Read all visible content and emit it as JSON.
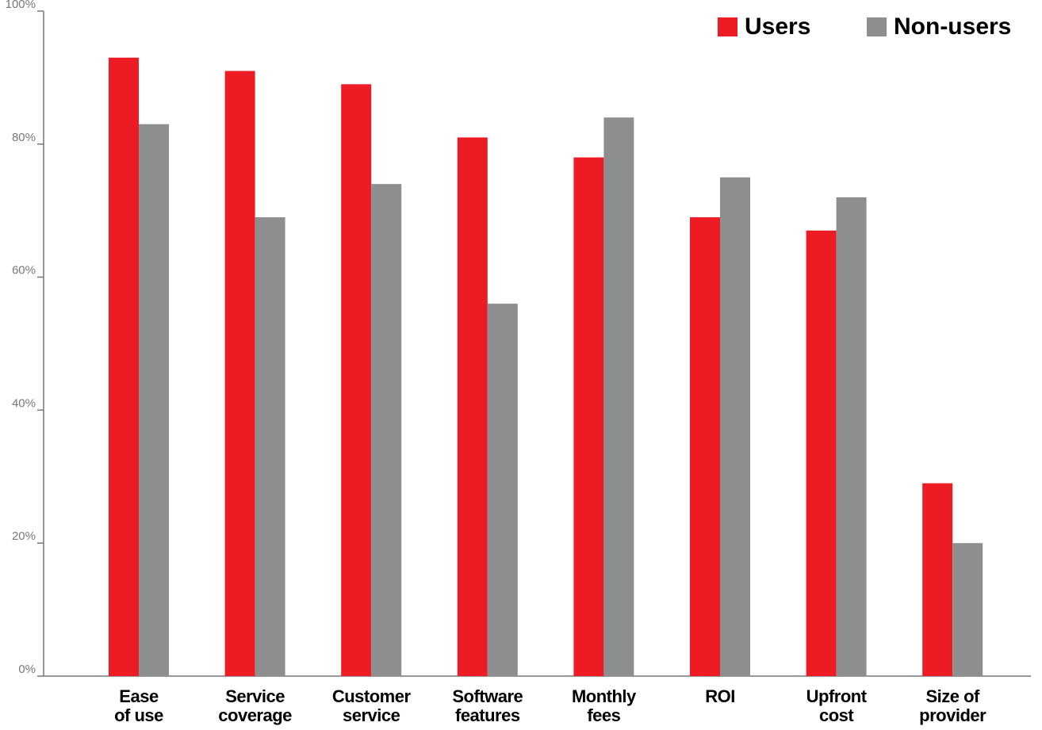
{
  "chart_data": {
    "type": "bar",
    "categories": [
      "Ease\nof use",
      "Service\ncoverage",
      "Customer\nservice",
      "Software\nfeatures",
      "Monthly\nfees",
      "ROI",
      "Upfront\ncost",
      "Size of\nprovider"
    ],
    "series": [
      {
        "name": "Users",
        "color": "#ed1c24",
        "values": [
          93,
          91,
          89,
          81,
          78,
          69,
          67,
          29
        ]
      },
      {
        "name": "Non-users",
        "color": "#8d8e90",
        "values": [
          83,
          69,
          74,
          56,
          84,
          75,
          72,
          20
        ]
      }
    ],
    "ylim": [
      0,
      100
    ],
    "yticks": [
      {
        "value": 0,
        "label": "0%"
      },
      {
        "value": 20,
        "label": "20%"
      },
      {
        "value": 40,
        "label": "40%"
      },
      {
        "value": 60,
        "label": "60%"
      },
      {
        "value": 80,
        "label": "80%"
      },
      {
        "value": 100,
        "label": "100%"
      }
    ],
    "legend": "top-right"
  }
}
